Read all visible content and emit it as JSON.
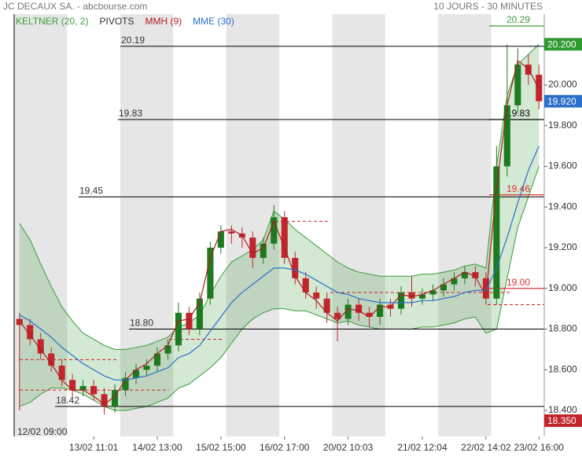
{
  "header": {
    "title": "JC DECAUX SA. - abcbourse.com",
    "period": "10 JOURS - 30 MINUTES"
  },
  "chart_data": {
    "type": "candlestick",
    "categories": [
      "12/02 09:00",
      null,
      null,
      null,
      null,
      null,
      null,
      "13/02 11:01",
      null,
      null,
      null,
      null,
      null,
      "14/02 13:00",
      null,
      null,
      null,
      null,
      null,
      "15/02 15:00",
      null,
      null,
      null,
      null,
      null,
      "16/02 17:00",
      null,
      null,
      null,
      null,
      null,
      "20/02 10:03",
      null,
      null,
      null,
      null,
      null,
      null,
      "21/02 12:04",
      null,
      null,
      null,
      null,
      null,
      "22/02 14:02",
      null,
      null,
      null,
      null,
      "23/02 16:00"
    ],
    "open": [
      18.85,
      18.82,
      18.75,
      18.68,
      18.62,
      18.55,
      18.5,
      18.52,
      18.48,
      18.42,
      18.5,
      18.56,
      18.6,
      18.62,
      18.68,
      18.72,
      18.88,
      18.8,
      18.95,
      19.2,
      19.28,
      19.27,
      19.25,
      19.15,
      19.22,
      19.35,
      19.15,
      19.05,
      18.98,
      18.95,
      18.88,
      18.85,
      18.92,
      18.88,
      18.86,
      18.92,
      18.9,
      18.98,
      18.95,
      18.97,
      18.99,
      19.02,
      19.05,
      19.08,
      19.05,
      18.95,
      19.6,
      19.9,
      20.1,
      20.05
    ],
    "high": [
      18.88,
      18.85,
      18.78,
      18.71,
      18.65,
      18.58,
      18.55,
      18.55,
      18.51,
      18.53,
      18.59,
      18.63,
      18.65,
      18.71,
      18.75,
      18.93,
      18.91,
      18.98,
      19.23,
      19.31,
      19.31,
      19.3,
      19.28,
      19.25,
      19.41,
      19.38,
      19.18,
      19.08,
      19.01,
      18.98,
      18.91,
      18.95,
      18.95,
      18.91,
      18.95,
      18.95,
      19.01,
      19.06,
      19.0,
      19.02,
      19.05,
      19.08,
      19.11,
      19.11,
      19.08,
      19.7,
      20.2,
      20.18,
      20.15,
      20.1
    ],
    "low": [
      18.4,
      18.72,
      18.65,
      18.59,
      18.52,
      18.47,
      18.47,
      18.45,
      18.38,
      18.39,
      18.47,
      18.53,
      18.57,
      18.59,
      18.65,
      18.69,
      18.77,
      18.77,
      18.92,
      19.17,
      19.22,
      19.2,
      19.1,
      19.12,
      19.19,
      19.12,
      19.02,
      18.95,
      18.9,
      18.83,
      18.74,
      18.82,
      18.84,
      18.81,
      18.82,
      18.86,
      18.87,
      18.91,
      18.92,
      18.94,
      18.96,
      18.99,
      19.02,
      19.01,
      18.92,
      18.92,
      19.55,
      19.86,
      20.0,
      19.88
    ],
    "close": [
      18.82,
      18.75,
      18.68,
      18.62,
      18.55,
      18.5,
      18.52,
      18.48,
      18.42,
      18.5,
      18.56,
      18.6,
      18.62,
      18.68,
      18.72,
      18.88,
      18.8,
      18.95,
      19.2,
      19.28,
      19.27,
      19.25,
      19.15,
      19.22,
      19.35,
      19.15,
      19.05,
      18.98,
      18.95,
      18.88,
      18.85,
      18.92,
      18.88,
      18.86,
      18.92,
      18.9,
      18.98,
      18.95,
      18.97,
      18.99,
      19.02,
      19.05,
      19.08,
      19.05,
      18.95,
      19.6,
      19.9,
      20.1,
      20.05,
      19.92
    ],
    "up_color": "#1e7a1e",
    "down_color": "#c0262b",
    "series": [
      {
        "name": "KELTNER (20, 2)",
        "color": "#3a9a3a",
        "upper": [
          19.32,
          19.24,
          19.12,
          19.01,
          18.91,
          18.84,
          18.78,
          18.75,
          18.72,
          18.7,
          18.7,
          18.71,
          18.72,
          18.74,
          18.76,
          18.81,
          18.83,
          18.87,
          18.97,
          19.06,
          19.13,
          19.16,
          19.19,
          19.24,
          19.38,
          19.34,
          19.29,
          19.25,
          19.21,
          19.17,
          19.13,
          19.1,
          19.08,
          19.07,
          19.06,
          19.06,
          19.06,
          19.06,
          19.07,
          19.07,
          19.08,
          19.09,
          19.11,
          19.12,
          19.1,
          19.6,
          19.95,
          20.1,
          20.15,
          20.2
        ],
        "lower": [
          18.42,
          18.44,
          18.48,
          18.51,
          18.51,
          18.5,
          18.48,
          18.45,
          18.42,
          18.4,
          18.4,
          18.41,
          18.42,
          18.44,
          18.46,
          18.51,
          18.53,
          18.57,
          18.61,
          18.66,
          18.73,
          18.8,
          18.85,
          18.88,
          18.9,
          18.9,
          18.89,
          18.89,
          18.87,
          18.85,
          18.83,
          18.84,
          18.82,
          18.81,
          18.8,
          18.8,
          18.8,
          18.8,
          18.81,
          18.81,
          18.82,
          18.83,
          18.85,
          18.86,
          18.78,
          18.8,
          19.05,
          19.3,
          19.45,
          19.6
        ]
      },
      {
        "name": "PIVOTS",
        "color": "#000000",
        "values": [
          20.19,
          19.83,
          19.45,
          {
            "value": 18.8,
            "label": "18.80"
          },
          18.42
        ]
      },
      {
        "name": "MMH (9)",
        "color": "#b01c22",
        "values": [
          18.84,
          18.77,
          18.7,
          18.63,
          18.55,
          18.5,
          18.5,
          18.47,
          18.43,
          18.47,
          18.55,
          18.6,
          18.63,
          18.68,
          18.72,
          18.84,
          18.85,
          18.93,
          19.15,
          19.28,
          19.29,
          19.26,
          19.17,
          19.2,
          19.33,
          19.2,
          19.06,
          18.98,
          18.94,
          18.88,
          18.84,
          18.9,
          18.89,
          18.86,
          18.91,
          18.91,
          18.97,
          18.96,
          18.97,
          18.99,
          19.02,
          19.05,
          19.08,
          19.06,
          18.96,
          19.5,
          19.9,
          20.12,
          20.08,
          19.98
        ]
      },
      {
        "name": "MME (30)",
        "color": "#2a6fc9",
        "values": [
          18.87,
          18.84,
          18.8,
          18.76,
          18.71,
          18.67,
          18.63,
          18.6,
          18.57,
          18.55,
          18.55,
          18.56,
          18.57,
          18.59,
          18.61,
          18.66,
          18.68,
          18.72,
          18.79,
          18.86,
          18.93,
          18.98,
          19.02,
          19.06,
          19.1,
          19.1,
          19.09,
          19.07,
          19.04,
          19.01,
          18.98,
          18.97,
          18.95,
          18.94,
          18.93,
          18.93,
          18.93,
          18.93,
          18.94,
          18.94,
          18.95,
          18.96,
          18.98,
          18.99,
          18.99,
          19.1,
          19.25,
          19.42,
          19.58,
          19.7
        ]
      }
    ],
    "next_pivots": [
      {
        "value": 20.29,
        "color": "#3a9a3a"
      },
      {
        "value": 19.83,
        "color": "#000000"
      },
      {
        "value": 19.46,
        "color": "#e03030"
      },
      {
        "value": 19,
        "label": "19.00",
        "color": "#e03030"
      }
    ],
    "dashed_levels": [
      18.65,
      18.5,
      18.75,
      19.33,
      18.98,
      18.92
    ],
    "dashed_color": "#d02020",
    "price_badges": [
      {
        "value": 20.2,
        "label": "20.200",
        "color": "#2e9a2e"
      },
      {
        "value": 19.92,
        "label": "19.920",
        "color": "#2a6fc9"
      },
      {
        "value": 18.35,
        "label": "18.350",
        "color": "#c0262b"
      }
    ],
    "ylim": [
      18.2725,
      20.348
    ],
    "yticks": [
      {
        "value": 18.4,
        "label": "18.400"
      },
      {
        "value": 18.6,
        "label": "18.600"
      },
      {
        "value": 18.8,
        "label": "18.800"
      },
      {
        "value": 19,
        "label": "19.000"
      },
      {
        "value": 19.2,
        "label": "19.200"
      },
      {
        "value": 19.4,
        "label": "19.400"
      },
      {
        "value": 19.6,
        "label": "19.600"
      },
      {
        "value": 19.8,
        "label": "19.800"
      },
      {
        "value": 20,
        "label": "20.000"
      }
    ]
  }
}
